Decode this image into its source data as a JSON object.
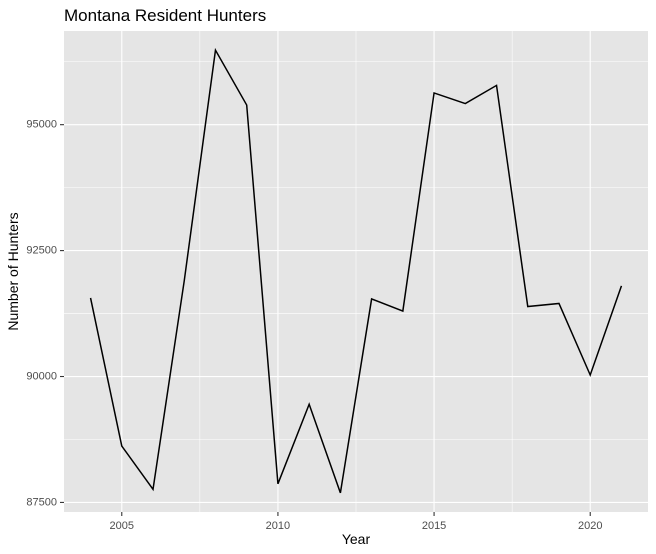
{
  "chart_data": {
    "type": "line",
    "title": "Montana Resident Hunters",
    "xlabel": "Year",
    "ylabel": "Number of Hunters",
    "x": [
      2004,
      2005,
      2006,
      2007,
      2008,
      2009,
      2010,
      2011,
      2012,
      2013,
      2014,
      2015,
      2016,
      2017,
      2018,
      2019,
      2020,
      2021
    ],
    "series": [
      {
        "values": [
          91560,
          88620,
          87760,
          91900,
          96480,
          95390,
          87870,
          89450,
          87690,
          91540,
          91300,
          95630,
          95420,
          95780,
          91390,
          91450,
          90030,
          91800
        ]
      }
    ],
    "xlim": [
      2003.15,
      2021.85
    ],
    "ylim": [
      87310,
      96860
    ],
    "x_ticks": [
      2005,
      2010,
      2015,
      2020
    ],
    "x_tick_labels": [
      "2005",
      "2010",
      "2015",
      "2020"
    ],
    "y_ticks": [
      87500,
      90000,
      92500,
      95000
    ],
    "y_tick_labels": [
      "87500",
      "90000",
      "92500",
      "95000"
    ],
    "grid": true,
    "legend": "none",
    "colors": {
      "panel_background": "#e5e5e5",
      "grid_line": "#ffffff",
      "series_line": "#000000",
      "tick_mark": "#333333",
      "tick_label": "#4d4d4d"
    }
  }
}
